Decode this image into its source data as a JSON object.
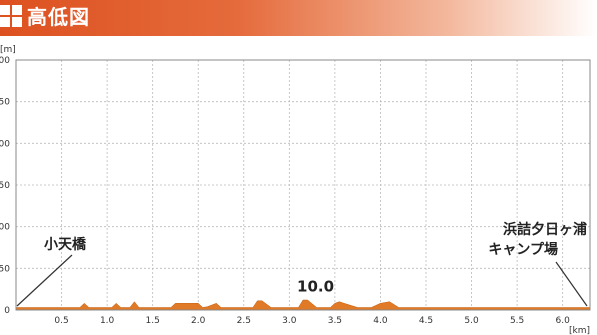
{
  "header": {
    "title": "高低図"
  },
  "colors": {
    "banner": "#dd5120",
    "area": "#e07a26",
    "grid": "#bbbbbb"
  },
  "chart_data": {
    "type": "area",
    "title": "高低図",
    "ylabel": "[m]",
    "xlabel": "[km]",
    "xlim": [
      0,
      6.3
    ],
    "ylim": [
      0,
      300
    ],
    "grid": true,
    "x_ticks": [
      0.5,
      1.0,
      1.5,
      2.0,
      2.5,
      3.0,
      3.5,
      4.0,
      4.5,
      5.0,
      5.5,
      6.0
    ],
    "y_ticks": [
      0,
      50,
      100,
      150,
      200,
      250,
      300
    ],
    "x_tick_labels": [
      "0.5",
      "1.0",
      "1.5",
      "2.0",
      "2.5",
      "3.0",
      "3.5",
      "4.0",
      "4.5",
      "5.0",
      "5.5",
      "6.0"
    ],
    "y_tick_labels": [
      "0",
      "50",
      "100",
      "150",
      "200",
      "250",
      "300"
    ],
    "series": [
      {
        "x": [
          0,
          0.7,
          0.75,
          0.8,
          0.9,
          1.05,
          1.1,
          1.15,
          1.25,
          1.3,
          1.35,
          1.5,
          1.7,
          1.75,
          2.0,
          2.05,
          2.1,
          2.2,
          2.25,
          2.3,
          2.45,
          2.6,
          2.65,
          2.7,
          2.8,
          2.95,
          3.1,
          3.15,
          3.2,
          3.3,
          3.45,
          3.5,
          3.55,
          3.6,
          3.75,
          3.9,
          4.0,
          4.1,
          4.2,
          4.5,
          5.0,
          6.0,
          6.3
        ],
        "y": [
          3,
          3,
          8,
          3,
          3,
          3,
          8,
          3,
          3,
          10,
          3,
          3,
          3,
          8,
          8,
          3,
          4,
          8,
          3,
          3,
          3,
          3,
          11,
          11,
          3,
          3,
          3,
          12,
          12,
          3,
          3,
          8,
          10,
          8,
          3,
          3,
          8,
          10,
          3,
          3,
          3,
          3,
          3
        ]
      }
    ],
    "annotations": [
      {
        "text": "小天橋",
        "x": 0,
        "y": 0
      },
      {
        "text": "浜詰夕日ヶ浦",
        "x": 6.3,
        "y": 0
      },
      {
        "text": "キャンプ場",
        "x": 6.3,
        "y": 0
      },
      {
        "text": "10.0",
        "x": 3.2,
        "y": 10
      }
    ]
  }
}
